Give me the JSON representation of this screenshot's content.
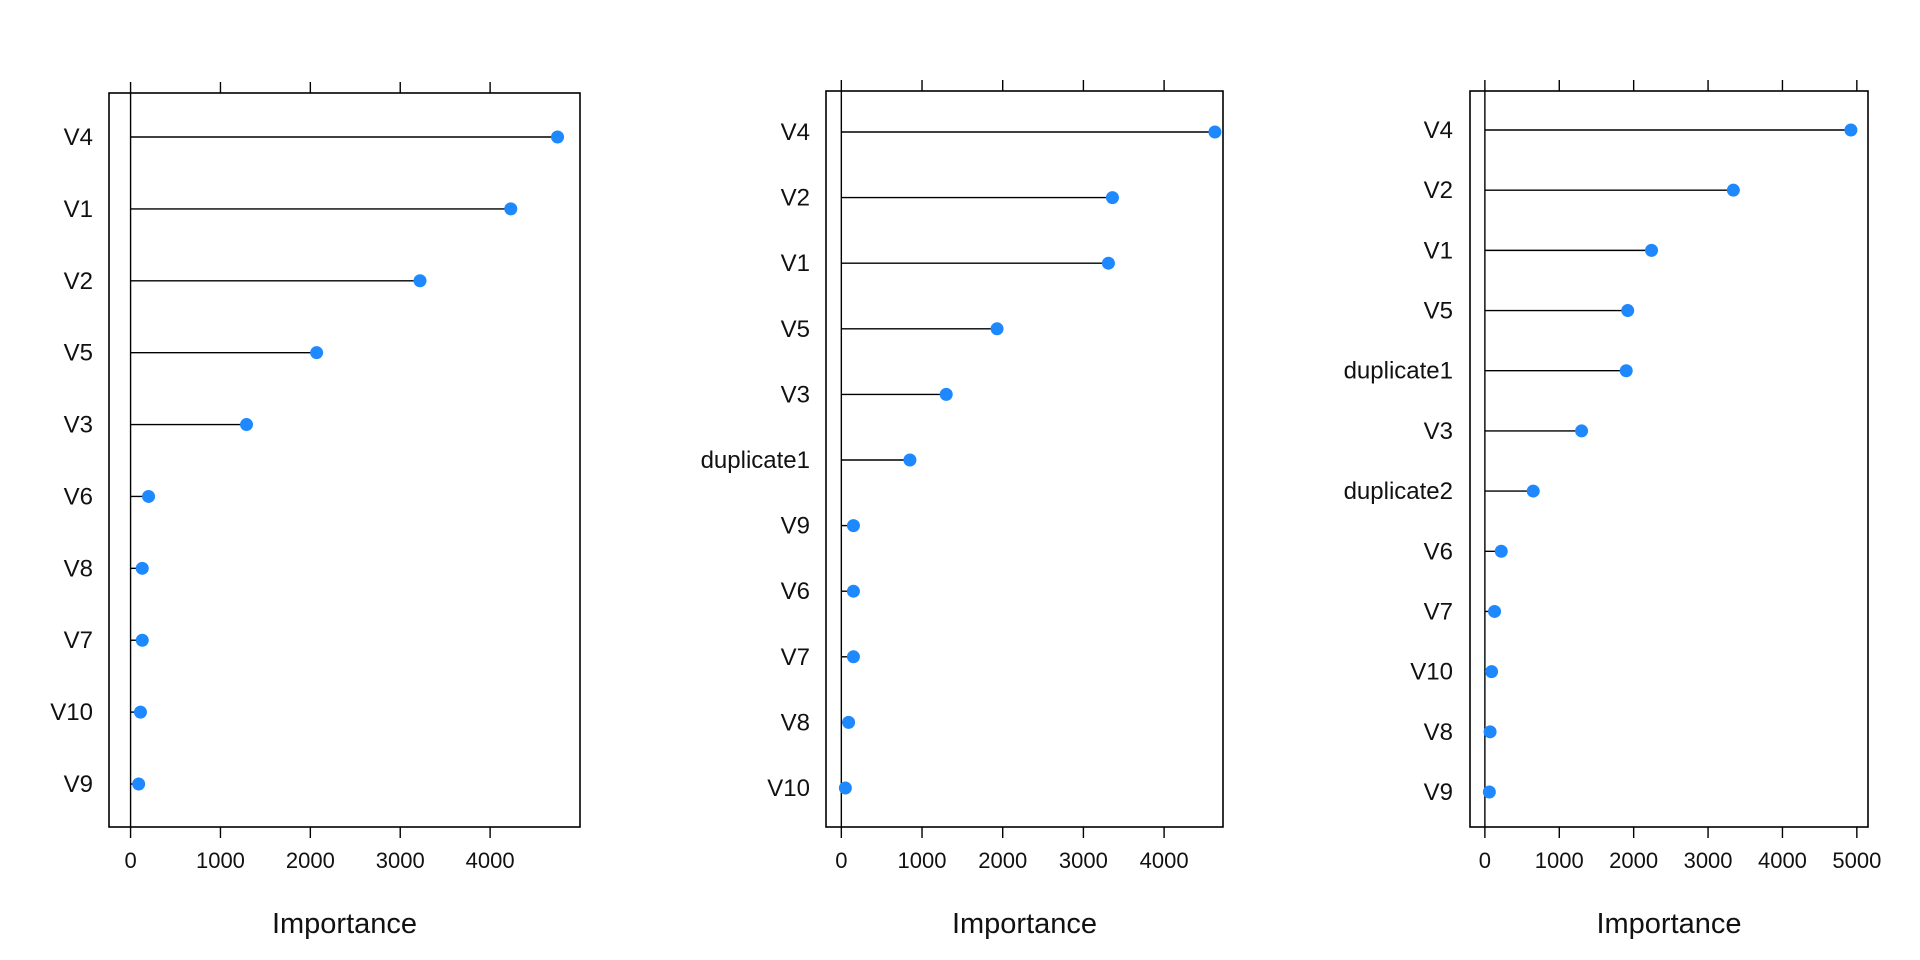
{
  "chart_data": [
    {
      "type": "dotplot",
      "xlabel": "Importance",
      "xticks": [
        0,
        1000,
        2000,
        3000,
        4000
      ],
      "xlim": [
        -240,
        5000
      ],
      "categories": [
        "V4",
        "V1",
        "V2",
        "V5",
        "V3",
        "V6",
        "V8",
        "V7",
        "V10",
        "V9"
      ],
      "values": [
        4750,
        4230,
        3220,
        2070,
        1290,
        200,
        130,
        130,
        110,
        90
      ],
      "colors": {
        "point": "#1E88FF",
        "line": "#000000"
      }
    },
    {
      "type": "dotplot",
      "xlabel": "Importance",
      "xticks": [
        0,
        1000,
        2000,
        3000,
        4000
      ],
      "xlim": [
        -190,
        4730
      ],
      "categories": [
        "V4",
        "V2",
        "V1",
        "V5",
        "V3",
        "duplicate1",
        "V9",
        "V6",
        "V7",
        "V8",
        "V10"
      ],
      "values": [
        4630,
        3360,
        3310,
        1930,
        1300,
        850,
        150,
        150,
        150,
        90,
        50
      ],
      "colors": {
        "point": "#1E88FF",
        "line": "#000000"
      }
    },
    {
      "type": "dotplot",
      "xlabel": "Importance",
      "xticks": [
        0,
        1000,
        2000,
        3000,
        4000,
        5000
      ],
      "xlim": [
        -200,
        5150
      ],
      "categories": [
        "V4",
        "V2",
        "V1",
        "V5",
        "duplicate1",
        "V3",
        "duplicate2",
        "V6",
        "V7",
        "V10",
        "V8",
        "V9"
      ],
      "values": [
        4920,
        3340,
        2240,
        1920,
        1900,
        1300,
        650,
        220,
        130,
        90,
        70,
        60
      ],
      "colors": {
        "point": "#1E88FF",
        "line": "#000000"
      }
    }
  ]
}
